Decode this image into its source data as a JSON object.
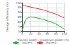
{
  "chart_data": {
    "type": "line",
    "xlabel": "Traction power / maximum power (%)",
    "ylabel": "Energy efficiency (%)",
    "xlim": [
      0,
      100
    ],
    "ylim": [
      70,
      100
    ],
    "xticks": [
      0,
      20,
      40,
      60,
      80,
      100
    ],
    "yticks": [
      70,
      75,
      80,
      85,
      90,
      95,
      100
    ],
    "grid": true,
    "legend": "bottom",
    "series": [
      {
        "name": "System",
        "color": "#22aa22",
        "x": [
          0,
          1,
          3,
          5,
          7,
          10,
          15,
          20,
          30,
          40,
          50,
          60,
          70,
          80,
          90,
          100
        ],
        "values": [
          71,
          72,
          75,
          78,
          81,
          83,
          84.5,
          85,
          84.5,
          83.5,
          82.5,
          81,
          79.5,
          77.5,
          75,
          72
        ]
      },
      {
        "name": "Battery",
        "color": "#dd3333",
        "x": [
          0,
          2,
          5,
          10,
          20,
          30,
          40,
          50,
          60,
          70,
          80,
          90,
          100
        ],
        "values": [
          98,
          97.5,
          97,
          96.5,
          95.5,
          94.5,
          93.5,
          92.5,
          91,
          89.5,
          88,
          86,
          84
        ]
      }
    ]
  }
}
